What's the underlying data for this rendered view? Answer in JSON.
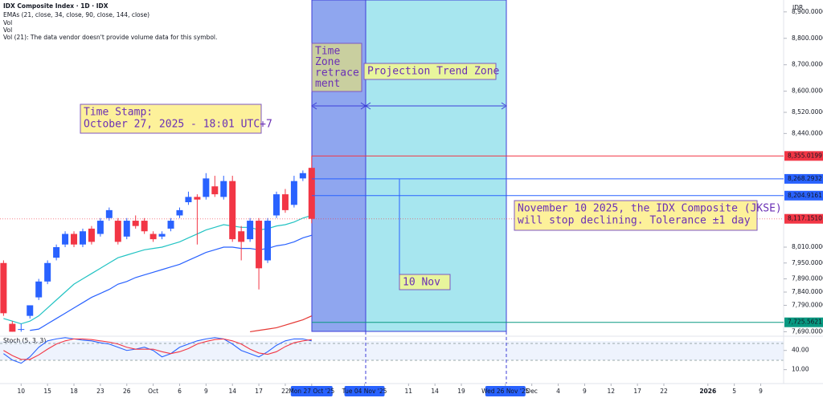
{
  "chart_data": {
    "type": "candlestick",
    "title": "IDX Composite Index · 1D · IDX",
    "legend_lines": [
      "EMAs (21, close, 34, close, 90, close, 144, close)",
      "Vol",
      "Vol",
      "Vol (21): The data vendor doesn't provide volume data for this symbol."
    ],
    "currency": "IDR",
    "open": [
      7950,
      7720,
      7700,
      7750,
      7820,
      7880,
      7970,
      8020,
      8060,
      8020,
      8080,
      8060,
      8120,
      8110,
      8050,
      8110,
      8110,
      8060,
      8050,
      8080,
      8130,
      8180,
      8200,
      8200,
      8240,
      8200,
      8260,
      8070,
      8040,
      8110,
      7960,
      8130,
      8210,
      8170,
      8270,
      8310
    ],
    "high": [
      7960,
      7730,
      7720,
      7790,
      7890,
      7960,
      8020,
      8070,
      8070,
      8080,
      8090,
      8120,
      8160,
      8120,
      8120,
      8130,
      8120,
      8070,
      8070,
      8120,
      8160,
      8220,
      8210,
      8290,
      8280,
      8280,
      8280,
      8090,
      8120,
      8120,
      8120,
      8220,
      8230,
      8280,
      8300,
      8355
    ],
    "low": [
      7750,
      7690,
      7690,
      7740,
      7810,
      7870,
      7960,
      8010,
      8010,
      8010,
      8020,
      8050,
      8110,
      8020,
      8040,
      8080,
      8060,
      8030,
      8040,
      8070,
      8120,
      8170,
      8020,
      8190,
      8200,
      8190,
      8030,
      7960,
      8030,
      7850,
      7950,
      8120,
      8140,
      8160,
      8260,
      8100
    ],
    "close": [
      7760,
      7690,
      7700,
      7790,
      7880,
      7950,
      8010,
      8060,
      8020,
      8070,
      8030,
      8110,
      8150,
      8030,
      8110,
      8090,
      8070,
      8040,
      8060,
      8110,
      8150,
      8200,
      8190,
      8270,
      8210,
      8260,
      8040,
      8030,
      8110,
      7930,
      8110,
      8210,
      8150,
      8260,
      8290,
      8117.151
    ],
    "up_color": "#2962ff",
    "down_color": "#f23645",
    "series": [
      {
        "name": "EMA 21",
        "color": "#22c3c3",
        "values": [
          7740,
          7730,
          7720,
          7730,
          7750,
          7780,
          7810,
          7840,
          7870,
          7890,
          7910,
          7930,
          7950,
          7970,
          7980,
          7990,
          8000,
          8005,
          8010,
          8020,
          8030,
          8045,
          8060,
          8075,
          8085,
          8095,
          8090,
          8085,
          8085,
          8075,
          8080,
          8090,
          8095,
          8105,
          8120,
          8130
        ]
      },
      {
        "name": "EMA 34",
        "color": "#2962ff",
        "values": [
          null,
          null,
          null,
          7695,
          7700,
          7720,
          7740,
          7760,
          7780,
          7800,
          7820,
          7835,
          7850,
          7870,
          7880,
          7895,
          7905,
          7915,
          7925,
          7935,
          7945,
          7960,
          7975,
          7990,
          8000,
          8010,
          8010,
          8005,
          8005,
          8000,
          8005,
          8015,
          8020,
          8030,
          8045,
          8055
        ]
      },
      {
        "name": "EMA 90",
        "color": "#e53935",
        "values": [
          null,
          null,
          null,
          null,
          null,
          null,
          null,
          null,
          null,
          null,
          null,
          null,
          null,
          null,
          null,
          null,
          null,
          null,
          null,
          null,
          null,
          null,
          null,
          null,
          null,
          null,
          null,
          null,
          7690,
          7695,
          7700,
          7705,
          7715,
          7725,
          7735,
          7750
        ]
      }
    ],
    "xlim": [
      -0.4,
      88.6
    ],
    "xticks": [
      {
        "value": 2,
        "label": "10"
      },
      {
        "value": 5,
        "label": "15"
      },
      {
        "value": 8,
        "label": "18"
      },
      {
        "value": 11,
        "label": "23"
      },
      {
        "value": 14,
        "label": "26"
      },
      {
        "value": 17,
        "label": "Oct"
      },
      {
        "value": 20,
        "label": "6"
      },
      {
        "value": 23,
        "label": "9"
      },
      {
        "value": 26,
        "label": "14"
      },
      {
        "value": 29,
        "label": "17"
      },
      {
        "value": 32,
        "label": "22"
      },
      {
        "value": 35,
        "label": "Mon 27 Oct '25"
      },
      {
        "value": 41,
        "label": "Tue 04 Nov '25"
      },
      {
        "value": 46,
        "label": "11"
      },
      {
        "value": 49,
        "label": "14"
      },
      {
        "value": 52,
        "label": "19"
      },
      {
        "value": 57,
        "label": "Wed 26 Nov '25"
      },
      {
        "value": 60,
        "label": "Dec"
      },
      {
        "value": 63,
        "label": "4"
      },
      {
        "value": 66,
        "label": "9"
      },
      {
        "value": 69,
        "label": "12"
      },
      {
        "value": 72,
        "label": "17"
      },
      {
        "value": 75,
        "label": "22"
      },
      {
        "value": 80,
        "label": "2026"
      },
      {
        "value": 83,
        "label": "5"
      },
      {
        "value": 86,
        "label": "9"
      }
    ],
    "ylim": [
      7670,
      8945
    ],
    "yticks": [
      {
        "value": 8900,
        "label": "8,900.0000"
      },
      {
        "value": 8800,
        "label": "8,800.0000"
      },
      {
        "value": 8700,
        "label": "8,700.0000"
      },
      {
        "value": 8600,
        "label": "8,600.0000"
      },
      {
        "value": 8520,
        "label": "8,520.0000"
      },
      {
        "value": 8440,
        "label": "8,440.0000"
      },
      {
        "value": 8010,
        "label": "8,010.0000"
      },
      {
        "value": 7950,
        "label": "7,950.0000"
      },
      {
        "value": 7890,
        "label": "7,890.0000"
      },
      {
        "value": 7840,
        "label": "7,840.0000"
      },
      {
        "value": 7790,
        "label": "7,790.0000"
      },
      {
        "value": 7690,
        "label": "7,690.0000"
      }
    ],
    "price_lines": [
      {
        "value": 8355.0199,
        "label": "8,355.0199",
        "color": "#f23645"
      },
      {
        "value": 8268.2932,
        "label": "8,268.2932",
        "color": "#2962ff"
      },
      {
        "value": 8204.9161,
        "label": "8,204.9161",
        "color": "#2962ff"
      },
      {
        "value": 8117.151,
        "label": "8,117.1510",
        "color": "#f23645"
      },
      {
        "value": 7725.5621,
        "label": "7,725.5621",
        "color": "#089981"
      }
    ],
    "stoch": {
      "name": "Stoch (5, 3, 3)",
      "k": [
        35,
        25,
        20,
        30,
        45,
        55,
        58,
        60,
        58,
        56,
        55,
        52,
        50,
        45,
        40,
        42,
        45,
        40,
        30,
        35,
        45,
        50,
        55,
        58,
        60,
        58,
        50,
        40,
        35,
        30,
        38,
        48,
        55,
        58,
        58,
        55
      ],
      "d": [
        40,
        32,
        26,
        26,
        33,
        42,
        50,
        55,
        58,
        58,
        57,
        55,
        53,
        50,
        45,
        42,
        42,
        42,
        38,
        35,
        38,
        43,
        50,
        54,
        57,
        58,
        55,
        50,
        42,
        36,
        34,
        38,
        46,
        52,
        55,
        57
      ],
      "k_color": "#2962ff",
      "d_color": "#f23645",
      "ylim": [
        -8,
        61
      ],
      "yticks": [
        {
          "value": 40,
          "label": "40.00"
        },
        {
          "value": 10,
          "label": "10.00"
        }
      ]
    },
    "annotations": [
      {
        "lines": [
          "Time Stamp:",
          "October 27, 2025 - 18:01 UTC+7"
        ]
      },
      {
        "lines": [
          "Time",
          "Zone",
          "retrace",
          "ment"
        ]
      },
      {
        "lines": [
          "Projection Trend Zone"
        ]
      },
      {
        "lines": [
          "November 10 2025, the IDX Composite (JKSE)",
          "will stop declining. Tolerance ±1 day"
        ]
      },
      {
        "lines": [
          "10 Nov"
        ]
      }
    ]
  }
}
